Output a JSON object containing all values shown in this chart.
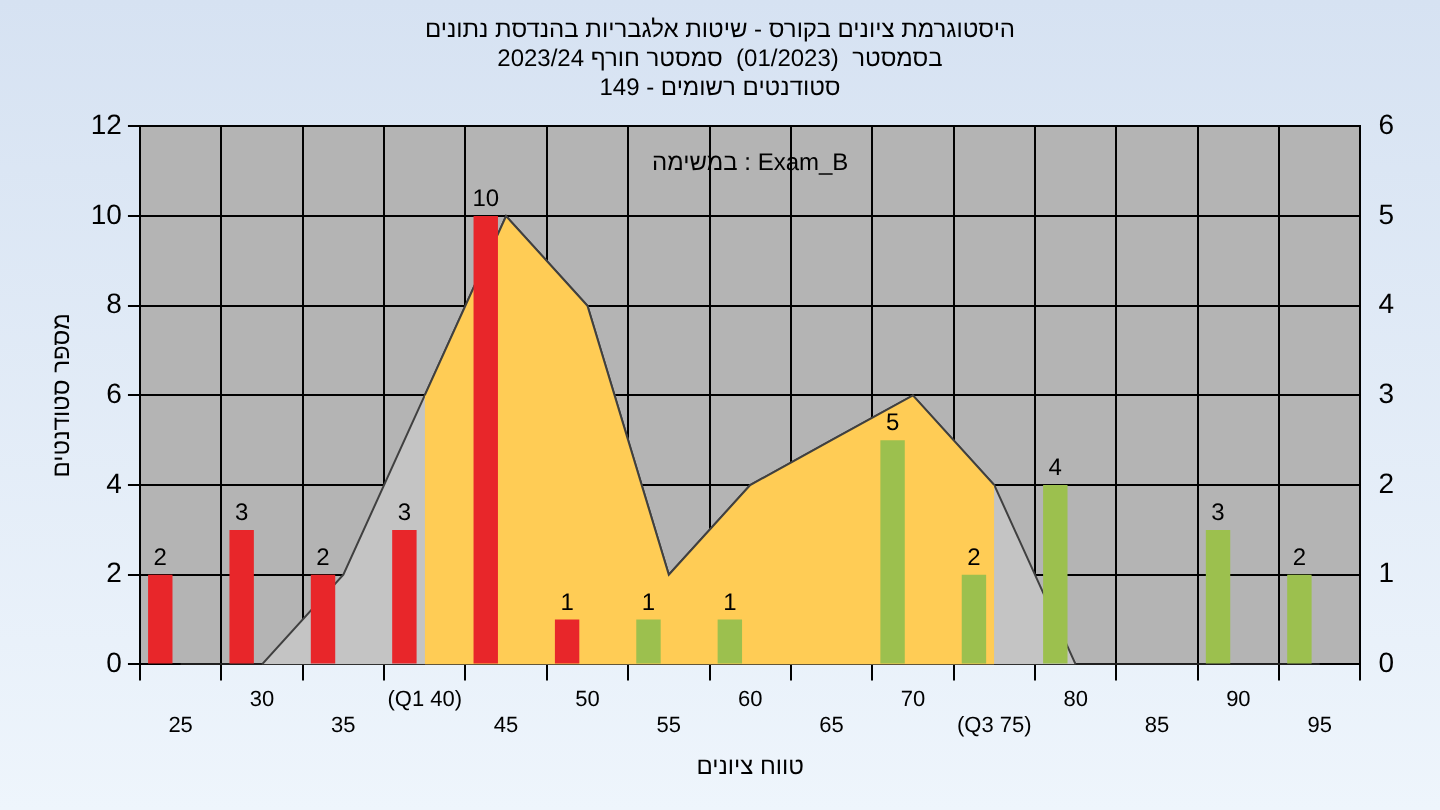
{
  "chart_data": {
    "type": "bar",
    "title": "היסטוגרמת ציונים בקורס - שיטות אלגבריות בהנדסת נתונים",
    "subtitle": [
      "בסמסטר  (01/2023)  סמסטר חורף 2023/24",
      "סטודנטים רשומים - 149"
    ],
    "xlabel": "טווח ציונים",
    "ylabel": "מספר סטודנטים",
    "annotations": [
      "במשימה : Exam_B"
    ],
    "categories": [
      "25",
      "30",
      "35",
      "(Q1 40)",
      "45",
      "50",
      "55",
      "60",
      "65",
      "70",
      "(Q3 75)",
      "80",
      "85",
      "90",
      "95"
    ],
    "series": [
      {
        "type": "bar",
        "values": [
          2,
          3,
          2,
          3,
          10,
          1,
          1,
          1,
          null,
          5,
          2,
          4,
          null,
          3,
          2
        ],
        "value_labels": [
          "2",
          "3",
          "2",
          "3",
          "10",
          "1",
          "1",
          "1",
          null,
          "5",
          "2",
          "4",
          null,
          "3",
          "2"
        ],
        "colors": [
          "#e8262a",
          "#e8262a",
          "#e8262a",
          "#e8262a",
          "#e8262a",
          "#e8262a",
          "#9cc04e",
          "#9cc04e",
          "#9cc04e",
          "#9cc04e",
          "#9cc04e",
          "#9cc04e",
          "#9cc04e",
          "#9cc04e",
          "#9cc04e"
        ]
      },
      {
        "type": "area",
        "axis": "y2",
        "color": "#c4c4c4",
        "values": [
          0,
          0,
          1,
          3,
          5,
          4,
          1,
          2,
          2.5,
          3,
          2,
          0,
          0,
          0,
          0
        ]
      },
      {
        "type": "area",
        "axis": "y2",
        "color": "#ffcc55",
        "values": [
          null,
          null,
          null,
          3,
          5,
          4,
          1,
          2,
          2.5,
          3,
          2,
          null,
          null,
          null,
          null
        ]
      }
    ],
    "ylim": [
      0,
      12
    ],
    "yticks": [
      0,
      2,
      4,
      6,
      8,
      10,
      12
    ],
    "y2lim": [
      0,
      6
    ],
    "y2ticks": [
      0,
      1,
      2,
      3,
      4,
      5,
      6
    ],
    "grid": true,
    "legend": false
  }
}
